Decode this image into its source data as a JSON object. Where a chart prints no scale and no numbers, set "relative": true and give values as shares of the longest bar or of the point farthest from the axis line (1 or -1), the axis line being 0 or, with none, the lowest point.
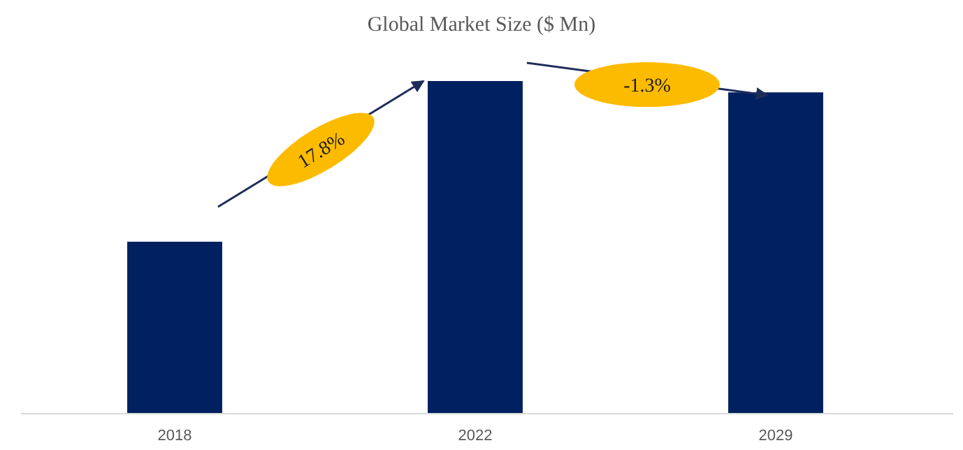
{
  "chart_data": {
    "type": "bar",
    "title": "Global Market Size ($ Mn)",
    "categories": [
      "2018",
      "2022",
      "2029"
    ],
    "values": [
      0.517,
      1,
      0.966
    ],
    "relative": true,
    "color": "#002060",
    "annotations": [
      "17.8%",
      "-1.3%"
    ]
  }
}
